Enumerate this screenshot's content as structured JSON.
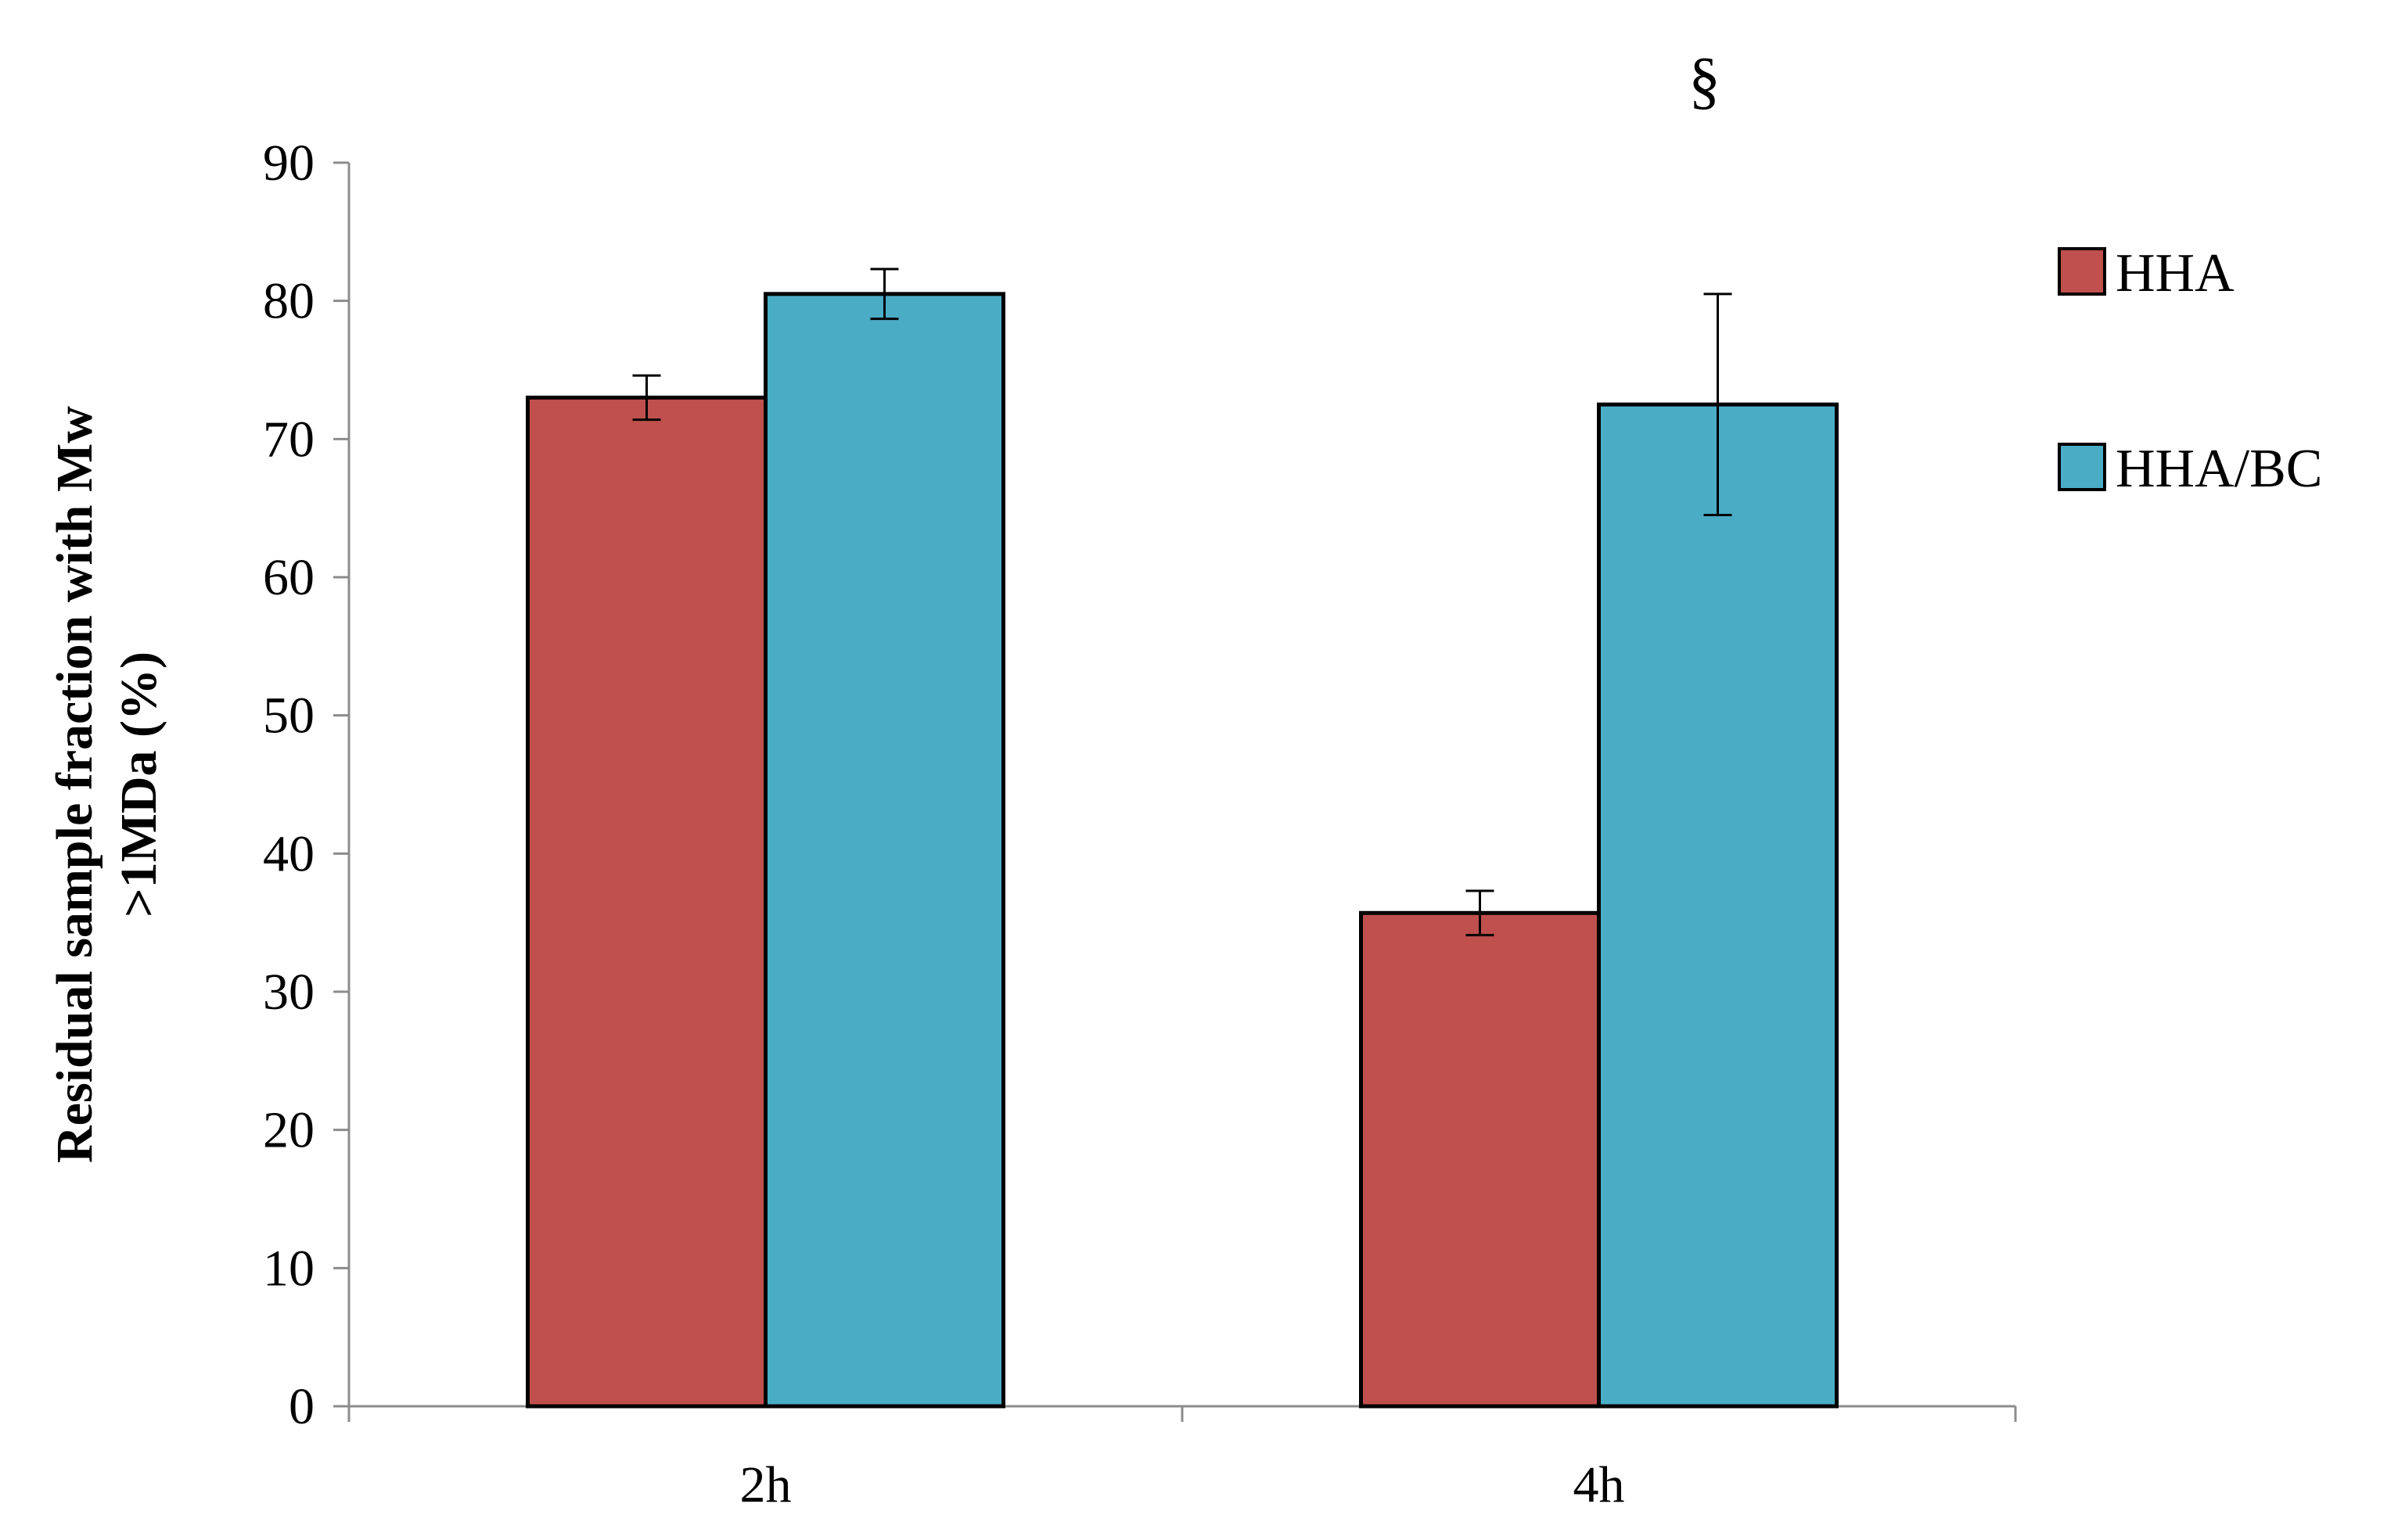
{
  "chart_data": {
    "type": "bar",
    "title": "",
    "xlabel": "",
    "ylabel_lines": [
      "Residual sample fraction with Mw",
      ">1MDa (%)"
    ],
    "ylim": [
      0,
      90
    ],
    "yticks": [
      0,
      10,
      20,
      30,
      40,
      50,
      60,
      70,
      80,
      90
    ],
    "categories": [
      "2h",
      "4h"
    ],
    "series": [
      {
        "name": "HHA",
        "color": "#c0504d",
        "values": [
          73,
          35.7
        ],
        "errors": [
          1.6,
          1.6
        ]
      },
      {
        "name": "HHA/BC",
        "color": "#4bacc6",
        "values": [
          80.5,
          72.5
        ],
        "errors": [
          1.8,
          8.0
        ]
      }
    ],
    "annotations": [
      {
        "text": "§",
        "category": "4h"
      }
    ],
    "legend": {
      "position": "right"
    },
    "grid": false
  }
}
